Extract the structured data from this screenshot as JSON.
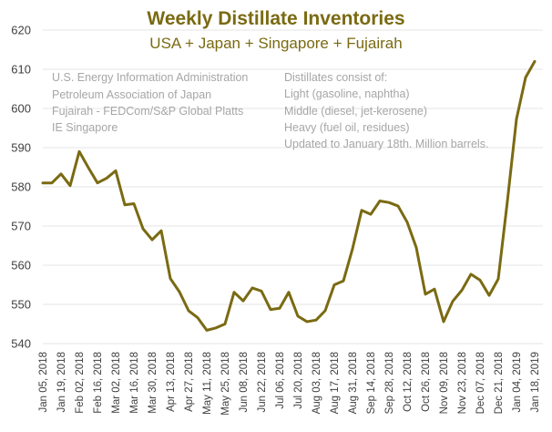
{
  "chart_data": {
    "type": "line",
    "title": "Weekly Distillate Inventories",
    "subtitle": "USA + Japan + Singapore + Fujairah",
    "sources": [
      "U.S. Energy Information Administration",
      "Petroleum Association of Japan",
      "Fujairah - FEDCom/S&P Global Platts",
      "IE Singapore"
    ],
    "notes": [
      "Distillates consist of:",
      "Light (gasoline, naphtha)",
      "Middle (diesel, jet-kerosene)",
      "Heavy (fuel oil, residues)",
      "Updated to January 18th. Million barrels."
    ],
    "ylim": [
      540,
      620
    ],
    "yticks": [
      540,
      550,
      560,
      570,
      580,
      590,
      600,
      610,
      620
    ],
    "xtick_labels": [
      "Jan 05, 2018",
      "Jan 19, 2018",
      "Feb 02, 2018",
      "Feb 16, 2018",
      "Mar 02, 2018",
      "Mar 16, 2018",
      "Mar 30, 2018",
      "Apr 13, 2018",
      "Apr 27, 2018",
      "May 11, 2018",
      "May 25, 2018",
      "Jun 08, 2018",
      "Jun 22, 2018",
      "Jul 06, 2018",
      "Jul 20, 2018",
      "Aug 03, 2018",
      "Aug 17, 2018",
      "Aug 31, 2018",
      "Sep 14, 2018",
      "Sep 28, 2018",
      "Oct 12, 2018",
      "Oct 26, 2018",
      "Nov 09, 2018",
      "Nov 23, 2018",
      "Dec 07, 2018",
      "Dec 21, 2018",
      "Jan 04, 2019",
      "Jan 18, 2019"
    ],
    "series": [
      {
        "name": "Weekly Distillate Inventories",
        "color": "#7a6a12",
        "values": [
          581,
          581,
          583.3,
          580.3,
          589,
          584.9,
          581,
          582.2,
          584.1,
          575.4,
          575.7,
          569.3,
          566.5,
          568.8,
          556.6,
          553.2,
          548.4,
          546.6,
          543.4,
          544,
          545,
          553.1,
          550.9,
          554.2,
          553.4,
          548.7,
          549,
          553.1,
          547,
          545.6,
          546,
          548.4,
          555,
          556,
          564.2,
          574,
          573,
          576.4,
          576,
          575.1,
          571,
          564.5,
          552.6,
          553.9,
          545.6,
          550.8,
          553.6,
          557.7,
          556.2,
          552.3,
          556.5,
          576.3,
          597.3,
          607.9,
          612
        ]
      }
    ]
  },
  "colors": {
    "line": "#7a6a12",
    "grid": "#e4e4e4",
    "title": "#7a6a12",
    "note": "#a6a6a6",
    "tick": "#404040"
  }
}
